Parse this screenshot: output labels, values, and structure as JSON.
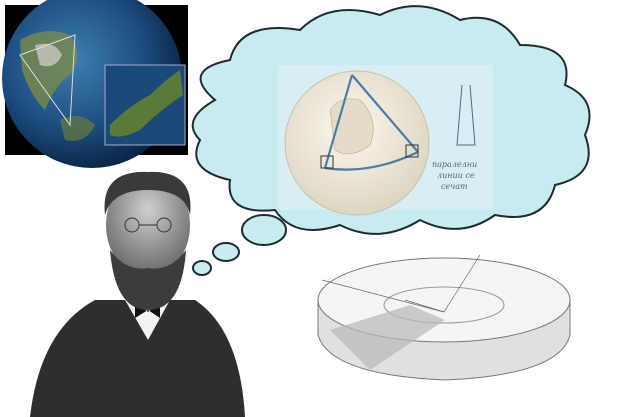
{
  "caption": {
    "lines": [
      "паралелни",
      "линии се",
      "сечат"
    ]
  }
}
